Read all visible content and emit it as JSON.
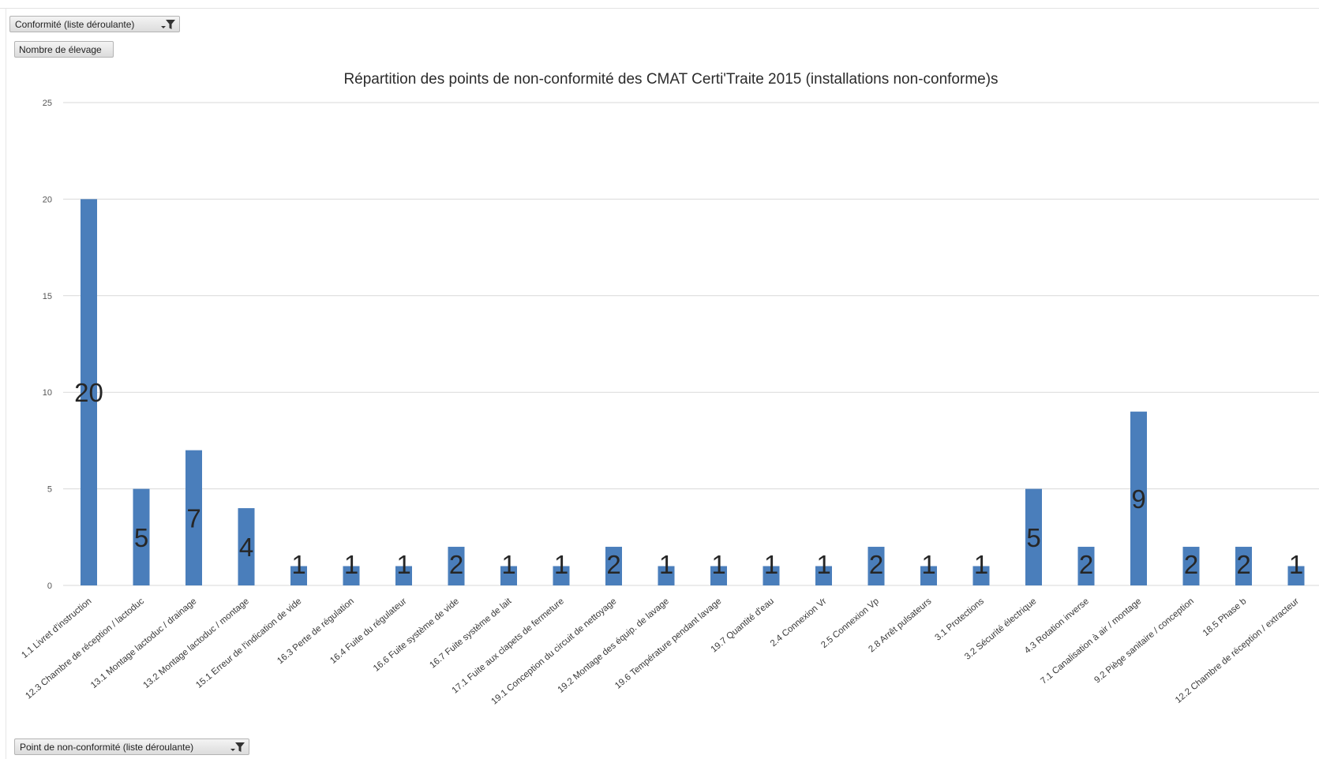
{
  "filters": {
    "conformite_label": "Conformité (liste déroulante)",
    "value_field_label": "Nombre de élevage",
    "axis_field_label": "Point de non-conformité (liste déroulante)"
  },
  "icons": {
    "filter": "funnel-dropdown-icon"
  },
  "colors": {
    "bar": "#4a7ebb",
    "gridline": "#d9d9d9",
    "background": "#ffffff"
  },
  "chart_data": {
    "type": "bar",
    "title": "Répartition des points de non-conformité des CMAT Certi'Traite 2015 (installations non-conforme)s",
    "xlabel": "",
    "ylabel": "",
    "ylim": [
      0,
      25
    ],
    "yticks": [
      0,
      5,
      10,
      15,
      20,
      25
    ],
    "grid": true,
    "legend": "none",
    "data_labels": true,
    "categories": [
      "1.1 Livret d'instruction",
      "12.3 Chambre de réception / lactoduc",
      "13.1 Montage lactoduc / drainage",
      "13.2 Montage lactoduc / montage",
      "15.1 Erreur de l'indication de vide",
      "16.3 Perte de régulation",
      "16.4 Fuite du régulateur",
      "16.6 Fuite système de vide",
      "16.7 Fuite système de lait",
      "17.1 Fuite aux clapets de fermeture",
      "19.1 Conception du circuit de nettoyage",
      "19.2 Montage des équip. de lavage",
      "19.6 Température pendant lavage",
      "19.7 Quantité d'eau",
      "2.4 Connexion Vr",
      "2.5 Connexion Vp",
      "2.8 Arrêt pulsateurs",
      "3.1 Protections",
      "3.2 Sécurité électrique",
      "4.3 Rotation inverse",
      "7.1 Canalisation à air / montage",
      "9.2 Piège sanitaire / conception",
      "18.5 Phase b",
      "12.2 Chambre de réception / extracteur"
    ],
    "values": [
      20,
      5,
      7,
      4,
      1,
      1,
      1,
      2,
      1,
      1,
      2,
      1,
      1,
      1,
      1,
      2,
      1,
      1,
      5,
      2,
      9,
      2,
      2,
      1
    ]
  }
}
